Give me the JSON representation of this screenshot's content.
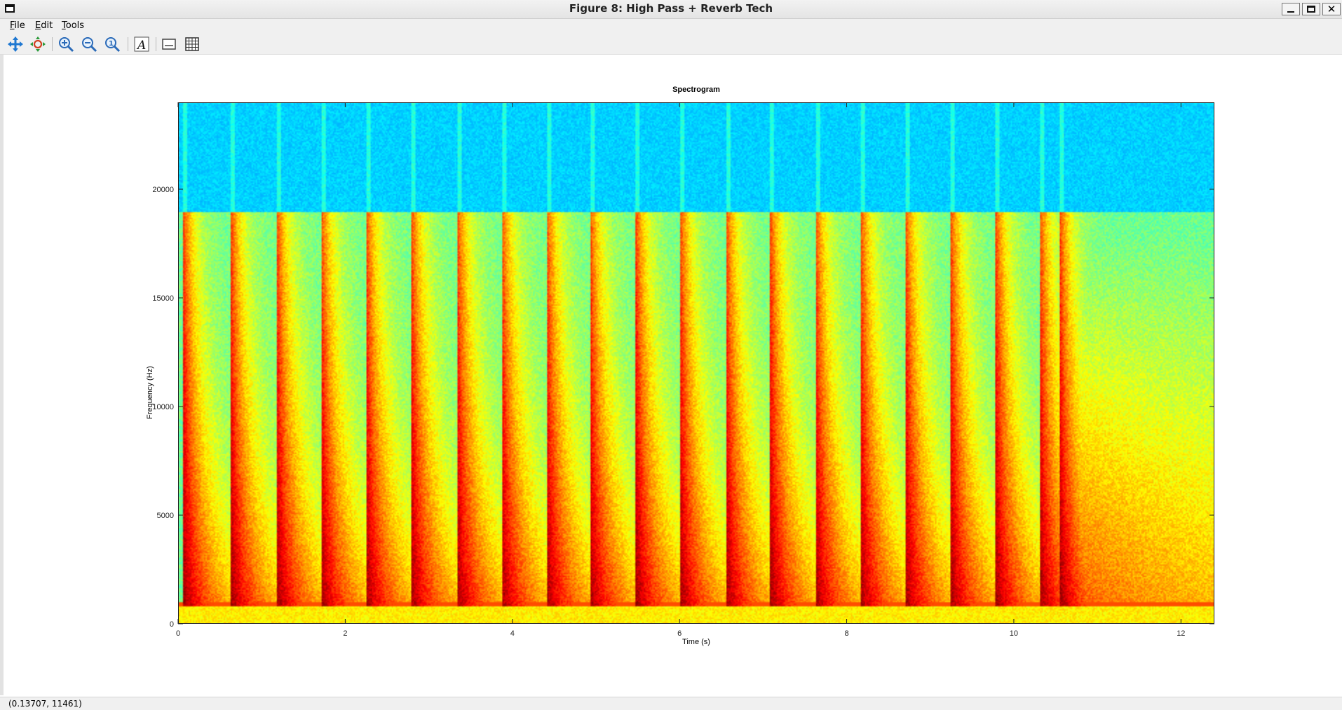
{
  "window": {
    "title": "Figure 8: High Pass + Reverb Tech"
  },
  "menu": {
    "file": "File",
    "edit": "Edit",
    "tools": "Tools"
  },
  "toolbar": {
    "tools": [
      "pan-icon",
      "rotate-icon",
      "zoom-in-icon",
      "zoom-out-icon",
      "zoom-reset-icon",
      "text-annotation-icon",
      "legend-icon",
      "grid-icon"
    ]
  },
  "status": {
    "pointer": "(0.13707, 11461)"
  },
  "chart_data": {
    "type": "heatmap",
    "title": "Spectrogram",
    "xlabel": "Time (s)",
    "ylabel": "Frequency (Hz)",
    "xlim": [
      0,
      12.4
    ],
    "ylim": [
      0,
      24000
    ],
    "xticks": [
      0,
      2,
      4,
      6,
      8,
      10,
      12
    ],
    "yticks": [
      0,
      5000,
      10000,
      15000,
      20000
    ],
    "colormap": "jet",
    "high_pass_cutoff_hz": 19000,
    "onsets_s": [
      0.05,
      0.62,
      1.17,
      1.7,
      2.24,
      2.78,
      3.33,
      3.86,
      4.4,
      4.92,
      5.47,
      6.0,
      6.55,
      7.08,
      7.62,
      8.16,
      8.7,
      9.24,
      9.78,
      10.31,
      10.55
    ],
    "colors": {
      "low": "#0a2fc8",
      "mid": "#36d7e2",
      "high": "#ffd21a",
      "peak": "#b00000"
    }
  }
}
